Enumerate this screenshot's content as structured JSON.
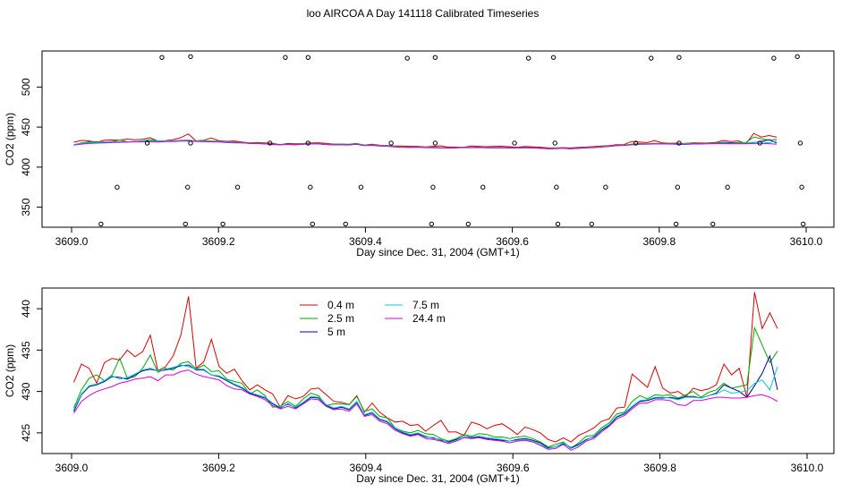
{
  "title": "loo AIRCOA A  Day 141118  Calibrated Timeseries",
  "chart_data": [
    {
      "type": "scatter+line",
      "xlabel": "Day since Dec. 31, 2004 (GMT+1)",
      "ylabel": "CO2 (ppm)",
      "xlim": [
        3609.0,
        3610.0
      ],
      "ylim": [
        325,
        545
      ],
      "xticks": [
        "3609.0",
        "3609.2",
        "3609.4",
        "3609.6",
        "3609.8",
        "3610.0"
      ],
      "yticks": [
        "350",
        "400",
        "450",
        "500"
      ],
      "xtick_values": [
        3609.0,
        3609.2,
        3609.4,
        3609.6,
        3609.8,
        3610.0
      ],
      "ytick_values": [
        350,
        400,
        450,
        500
      ],
      "grid": false,
      "reference_points": [
        {
          "x": 3609.123,
          "y": 537
        },
        {
          "x": 3609.162,
          "y": 538
        },
        {
          "x": 3609.291,
          "y": 537
        },
        {
          "x": 3609.322,
          "y": 537
        },
        {
          "x": 3609.457,
          "y": 536
        },
        {
          "x": 3609.495,
          "y": 537
        },
        {
          "x": 3609.622,
          "y": 536
        },
        {
          "x": 3609.656,
          "y": 537
        },
        {
          "x": 3609.789,
          "y": 536
        },
        {
          "x": 3609.827,
          "y": 537
        },
        {
          "x": 3609.956,
          "y": 536
        },
        {
          "x": 3609.988,
          "y": 538
        },
        {
          "x": 3609.04,
          "y": 329
        },
        {
          "x": 3609.062,
          "y": 375
        },
        {
          "x": 3609.103,
          "y": 430
        },
        {
          "x": 3609.155,
          "y": 329
        },
        {
          "x": 3609.158,
          "y": 375
        },
        {
          "x": 3609.162,
          "y": 430
        },
        {
          "x": 3609.206,
          "y": 329
        },
        {
          "x": 3609.226,
          "y": 375
        },
        {
          "x": 3609.27,
          "y": 430
        },
        {
          "x": 3609.322,
          "y": 430
        },
        {
          "x": 3609.325,
          "y": 375
        },
        {
          "x": 3609.328,
          "y": 329
        },
        {
          "x": 3609.373,
          "y": 329
        },
        {
          "x": 3609.394,
          "y": 375
        },
        {
          "x": 3609.435,
          "y": 430
        },
        {
          "x": 3609.49,
          "y": 329
        },
        {
          "x": 3609.492,
          "y": 375
        },
        {
          "x": 3609.495,
          "y": 430
        },
        {
          "x": 3609.54,
          "y": 329
        },
        {
          "x": 3609.56,
          "y": 375
        },
        {
          "x": 3609.603,
          "y": 430
        },
        {
          "x": 3609.658,
          "y": 430
        },
        {
          "x": 3609.66,
          "y": 375
        },
        {
          "x": 3609.662,
          "y": 329
        },
        {
          "x": 3609.708,
          "y": 329
        },
        {
          "x": 3609.727,
          "y": 375
        },
        {
          "x": 3609.768,
          "y": 430
        },
        {
          "x": 3609.823,
          "y": 329
        },
        {
          "x": 3609.825,
          "y": 375
        },
        {
          "x": 3609.827,
          "y": 430
        },
        {
          "x": 3609.873,
          "y": 329
        },
        {
          "x": 3609.893,
          "y": 375
        },
        {
          "x": 3609.937,
          "y": 430
        },
        {
          "x": 3609.992,
          "y": 430
        },
        {
          "x": 3609.994,
          "y": 375
        },
        {
          "x": 3609.996,
          "y": 329
        }
      ]
    },
    {
      "type": "line",
      "xlabel": "Day since Dec. 31, 2004 (GMT+1)",
      "ylabel": "CO2 (ppm)",
      "xlim": [
        3609.0,
        3610.0
      ],
      "ylim": [
        422.5,
        442.5
      ],
      "xticks": [
        "3609.0",
        "3609.2",
        "3609.4",
        "3609.6",
        "3609.8",
        "3610.0"
      ],
      "yticks": [
        "425",
        "430",
        "435",
        "440"
      ],
      "xtick_values": [
        3609.0,
        3609.2,
        3609.4,
        3609.6,
        3609.8,
        3610.0
      ],
      "ytick_values": [
        425,
        430,
        435,
        440
      ],
      "grid": false,
      "legend": {
        "placement": "top-left"
      },
      "x_start": 3609.003,
      "x_step": 0.0104,
      "series": [
        {
          "name": "0.4 m",
          "color": "#dd0000",
          "values": [
            431.1,
            433.3,
            432.8,
            431.0,
            433.5,
            434.0,
            433.8,
            435.0,
            434.2,
            434.8,
            436.8,
            432.5,
            433.0,
            434.3,
            436.8,
            441.5,
            432.8,
            433.6,
            436.3,
            433.0,
            432.2,
            432.7,
            431.3,
            430.2,
            430.8,
            430.2,
            429.7,
            428.1,
            429.5,
            429.1,
            429.4,
            430.3,
            430.4,
            429.6,
            428.8,
            428.7,
            428.4,
            429.5,
            427.5,
            428.6,
            427.5,
            426.8,
            426.3,
            426.4,
            425.9,
            426.0,
            425.2,
            425.9,
            426.5,
            425.1,
            425.1,
            424.7,
            426.3,
            426.0,
            425.5,
            425.9,
            426.1,
            425.5,
            424.8,
            425.7,
            425.4,
            425.0,
            424.2,
            423.9,
            424.4,
            423.9,
            424.7,
            425.1,
            425.6,
            426.4,
            426.7,
            428.0,
            428.1,
            432.1,
            431.3,
            430.5,
            433.0,
            430.4,
            429.8,
            430.0,
            429.4,
            430.4,
            430.1,
            430.3,
            430.8,
            433.3,
            432.0,
            432.8,
            429.3,
            442.0,
            437.6,
            439.5,
            437.6
          ]
        },
        {
          "name": "2.5 m",
          "color": "#00aa00",
          "values": [
            428.0,
            430.2,
            431.6,
            432.0,
            431.3,
            432.0,
            434.0,
            431.6,
            431.8,
            432.8,
            434.4,
            432.3,
            432.8,
            432.6,
            433.4,
            433.6,
            432.7,
            433.2,
            432.4,
            432.5,
            431.5,
            431.2,
            431.0,
            429.7,
            430.2,
            429.5,
            428.1,
            428.2,
            428.8,
            428.2,
            429.1,
            429.8,
            429.5,
            428.3,
            428.5,
            428.5,
            428.4,
            429.4,
            427.6,
            427.9,
            427.0,
            426.8,
            425.6,
            425.2,
            425.0,
            425.3,
            424.9,
            424.8,
            424.3,
            424.0,
            424.3,
            424.8,
            424.6,
            424.9,
            424.8,
            424.5,
            424.5,
            424.3,
            424.5,
            424.6,
            424.3,
            423.9,
            423.3,
            423.6,
            423.9,
            423.1,
            423.8,
            424.6,
            424.7,
            425.6,
            426.2,
            427.3,
            427.5,
            428.8,
            429.5,
            429.1,
            429.6,
            429.5,
            429.6,
            429.2,
            429.6,
            430.0,
            429.3,
            429.9,
            430.2,
            431.0,
            430.4,
            430.6,
            430.8,
            437.7,
            435.6,
            433.5,
            434.9
          ]
        },
        {
          "name": "5 m",
          "color": "#00009e",
          "values": [
            427.6,
            429.6,
            430.6,
            430.8,
            431.2,
            431.8,
            431.7,
            431.5,
            432.0,
            432.5,
            432.7,
            432.5,
            432.6,
            432.8,
            433.1,
            433.2,
            432.6,
            432.6,
            432.0,
            431.8,
            431.3,
            430.8,
            430.4,
            429.8,
            429.5,
            429.2,
            428.5,
            428.0,
            428.5,
            428.0,
            428.6,
            429.3,
            429.2,
            428.3,
            427.9,
            428.1,
            427.8,
            428.7,
            427.1,
            427.4,
            426.6,
            426.3,
            425.5,
            425.0,
            424.7,
            424.9,
            424.5,
            424.4,
            424.1,
            423.9,
            424.2,
            424.6,
            424.4,
            424.5,
            424.3,
            424.2,
            424.1,
            424.0,
            424.2,
            424.3,
            424.1,
            423.8,
            423.2,
            423.3,
            423.7,
            423.2,
            423.6,
            424.2,
            424.5,
            425.3,
            425.9,
            426.9,
            427.3,
            428.1,
            428.8,
            428.9,
            429.2,
            429.2,
            429.3,
            429.1,
            429.4,
            429.4,
            429.2,
            429.5,
            429.8,
            430.8,
            430.4,
            430.0,
            429.3,
            430.7,
            432.2,
            434.3,
            430.2
          ]
        },
        {
          "name": "7.5 m",
          "color": "#00cccc",
          "values": [
            427.8,
            429.7,
            430.7,
            430.9,
            431.3,
            431.9,
            431.5,
            431.7,
            432.1,
            432.6,
            432.8,
            432.5,
            432.7,
            432.9,
            433.2,
            433.0,
            432.7,
            432.7,
            432.0,
            431.9,
            431.4,
            430.9,
            430.5,
            429.9,
            429.6,
            429.3,
            428.6,
            428.1,
            428.4,
            428.1,
            428.7,
            429.4,
            429.3,
            428.4,
            428.0,
            428.2,
            427.9,
            428.8,
            427.2,
            427.5,
            426.7,
            426.4,
            425.6,
            425.1,
            424.8,
            425.0,
            424.6,
            424.3,
            424.2,
            423.8,
            424.1,
            424.6,
            424.5,
            424.6,
            424.4,
            424.3,
            424.2,
            424.0,
            424.1,
            424.2,
            424.0,
            423.6,
            423.1,
            423.3,
            423.8,
            423.1,
            423.5,
            424.1,
            424.6,
            425.4,
            426.0,
            427.0,
            427.4,
            428.2,
            428.9,
            429.0,
            429.3,
            429.3,
            429.2,
            429.0,
            429.3,
            429.3,
            429.2,
            429.5,
            429.7,
            430.2,
            429.8,
            429.9,
            430.1,
            431.0,
            431.4,
            430.2,
            433.0
          ]
        },
        {
          "name": "24.4 m",
          "color": "#dd00dd",
          "values": [
            427.4,
            428.8,
            429.5,
            430.0,
            430.3,
            430.6,
            431.0,
            431.2,
            431.5,
            431.6,
            431.8,
            431.3,
            432.0,
            432.0,
            432.4,
            432.6,
            432.1,
            431.8,
            431.6,
            431.4,
            430.7,
            430.3,
            430.2,
            429.7,
            429.4,
            429.0,
            428.3,
            427.9,
            428.2,
            427.9,
            428.5,
            429.1,
            429.0,
            428.2,
            427.8,
            427.9,
            427.6,
            428.5,
            427.0,
            427.2,
            426.4,
            426.1,
            425.3,
            424.9,
            424.6,
            424.8,
            424.3,
            424.2,
            424.0,
            423.7,
            424.0,
            424.4,
            424.3,
            424.4,
            424.2,
            424.1,
            424.0,
            423.8,
            424.0,
            424.1,
            423.9,
            423.5,
            423.0,
            423.1,
            423.6,
            422.9,
            423.3,
            424.0,
            424.3,
            425.1,
            425.8,
            426.7,
            427.1,
            427.9,
            428.6,
            428.6,
            429.0,
            429.0,
            428.9,
            428.4,
            428.3,
            428.9,
            428.9,
            429.1,
            429.3,
            429.3,
            429.2,
            429.2,
            429.3,
            429.5,
            429.6,
            429.3,
            428.8
          ]
        }
      ]
    }
  ]
}
